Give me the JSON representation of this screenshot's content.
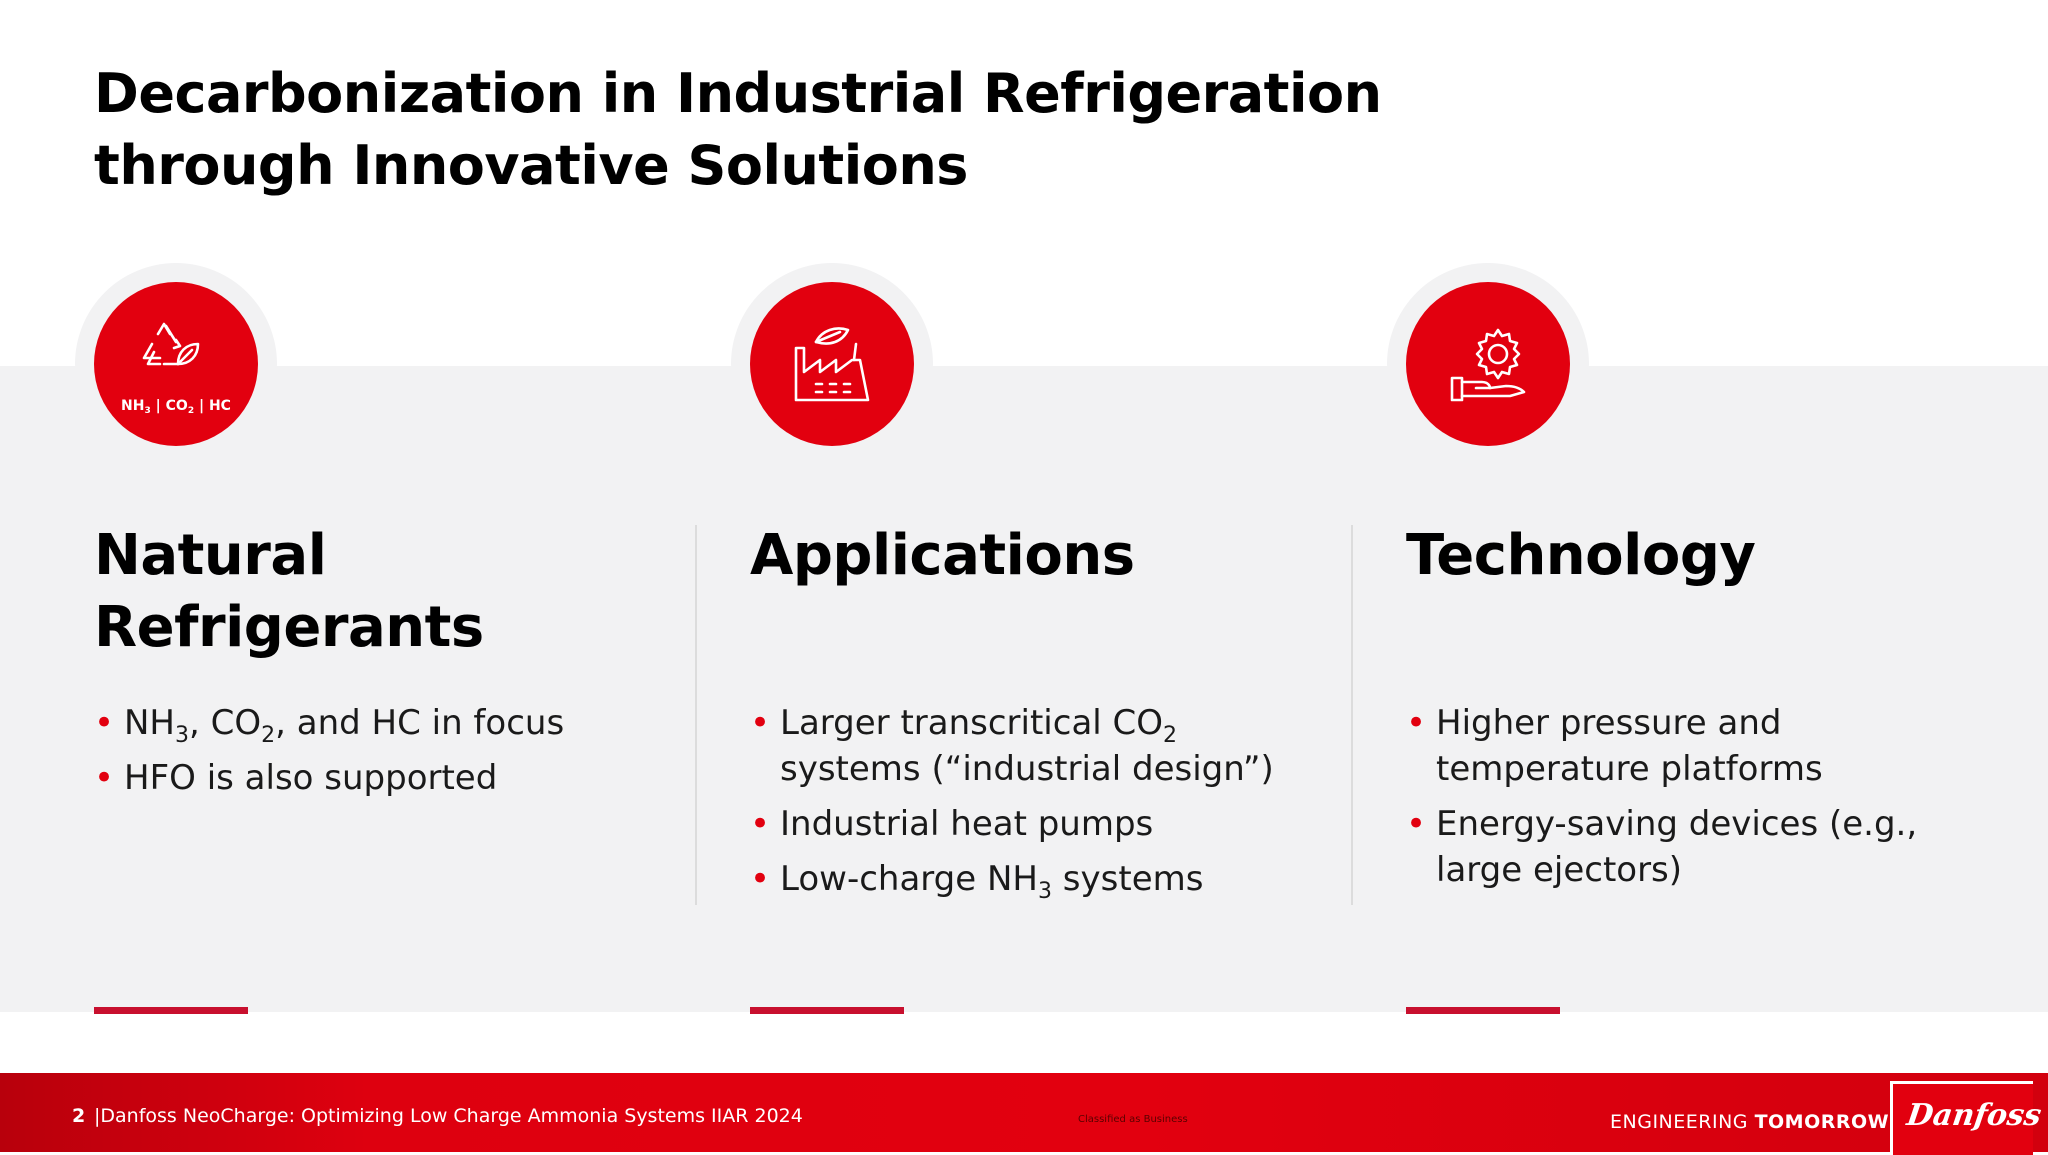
{
  "slide": {
    "title_line1": "Decarbonization in Industrial Refrigeration",
    "title_line2": "through Innovative Solutions"
  },
  "columns": [
    {
      "heading_line1": "Natural",
      "heading_line2": "Refrigerants",
      "icon": "recycle-leaf-icon",
      "icon_label": "NH3 | CO2 | HC",
      "icon_label_parts": [
        "NH",
        "3",
        "CO",
        "2",
        "HC"
      ],
      "bullets": [
        {
          "parts": [
            "NH",
            "3",
            ", CO",
            "2",
            ", and HC in focus"
          ]
        },
        {
          "text": "HFO is also supported"
        }
      ]
    },
    {
      "heading_line1": "Applications",
      "icon": "factory-leaf-icon",
      "bullets": [
        {
          "parts": [
            "Larger transcritical CO",
            "2",
            " systems (“industrial design”)"
          ]
        },
        {
          "text": "Industrial heat pumps"
        },
        {
          "parts": [
            "Low-charge NH",
            "3",
            " systems"
          ]
        }
      ]
    },
    {
      "heading_line1": "Technology",
      "icon": "gear-hand-icon",
      "bullets": [
        {
          "text": "Higher pressure and temperature platforms"
        },
        {
          "text": "Energy-saving devices (e.g., large ejectors)"
        }
      ]
    }
  ],
  "footer": {
    "page_number": "2",
    "title": "|Danfoss NeoCharge: Optimizing Low Charge Ammonia Systems IIAR 2024",
    "classification": "Classified as Business",
    "tagline_regular": "ENGINEERING",
    "tagline_bold": "TOMORROW",
    "logo_text": "Danfoss"
  },
  "colors": {
    "brand_red": "#e2000f",
    "accent_red": "#c8102e",
    "band_gray": "#f2f2f3"
  }
}
